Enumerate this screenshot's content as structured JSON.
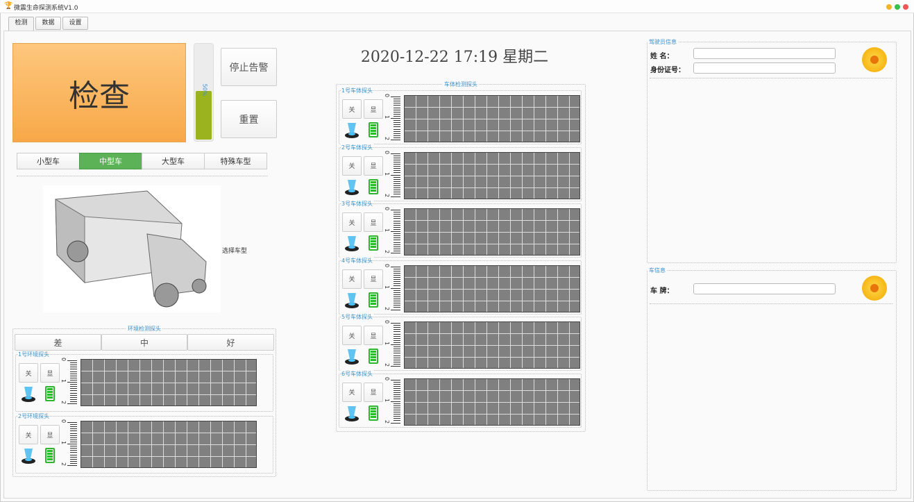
{
  "window": {
    "title": "微震生命探测系统V1.0",
    "controls": [
      "#f5b32a",
      "#38c149",
      "#f15656"
    ]
  },
  "tabs": [
    {
      "label": "检测",
      "active": true
    },
    {
      "label": "数据"
    },
    {
      "label": "设置"
    }
  ],
  "left": {
    "check_label": "检查",
    "progress": {
      "percent": 50,
      "label": "50%"
    },
    "stop_alarm": "停止告警",
    "reset": "重置",
    "vehicle_types": [
      {
        "label": "小型车"
      },
      {
        "label": "中型车",
        "selected": true
      },
      {
        "label": "大型车"
      },
      {
        "label": "特殊车型"
      }
    ],
    "select_vehicle_label": "选择车型",
    "env": {
      "title": "环境检测探头",
      "quality_tabs": [
        "差",
        "中",
        "好"
      ],
      "probes": [
        {
          "name": "1号环境探头",
          "off": "关",
          "show": "显"
        },
        {
          "name": "2号环境探头",
          "off": "关",
          "show": "显"
        }
      ]
    }
  },
  "center": {
    "datetime": "2020-12-22  17:19  星期二",
    "car_title": "车体检测探头",
    "probes": [
      {
        "name": "1号车体探头",
        "off": "关",
        "show": "显"
      },
      {
        "name": "2号车体探头",
        "off": "关",
        "show": "显"
      },
      {
        "name": "3号车体探头",
        "off": "关",
        "show": "显"
      },
      {
        "name": "4号车体探头",
        "off": "关",
        "show": "显"
      },
      {
        "name": "5号车体探头",
        "off": "关",
        "show": "显"
      },
      {
        "name": "6号车体探头",
        "off": "关",
        "show": "显"
      }
    ],
    "ruler_labels": [
      "0",
      "1",
      "2"
    ]
  },
  "right": {
    "driver": {
      "title": "驾驶员信息",
      "name_label": "姓    名：",
      "id_label": "身份证号：",
      "name_value": "",
      "id_value": ""
    },
    "vehicle": {
      "title": "车信息",
      "plate_label": "车    牌：",
      "plate_value": ""
    }
  }
}
